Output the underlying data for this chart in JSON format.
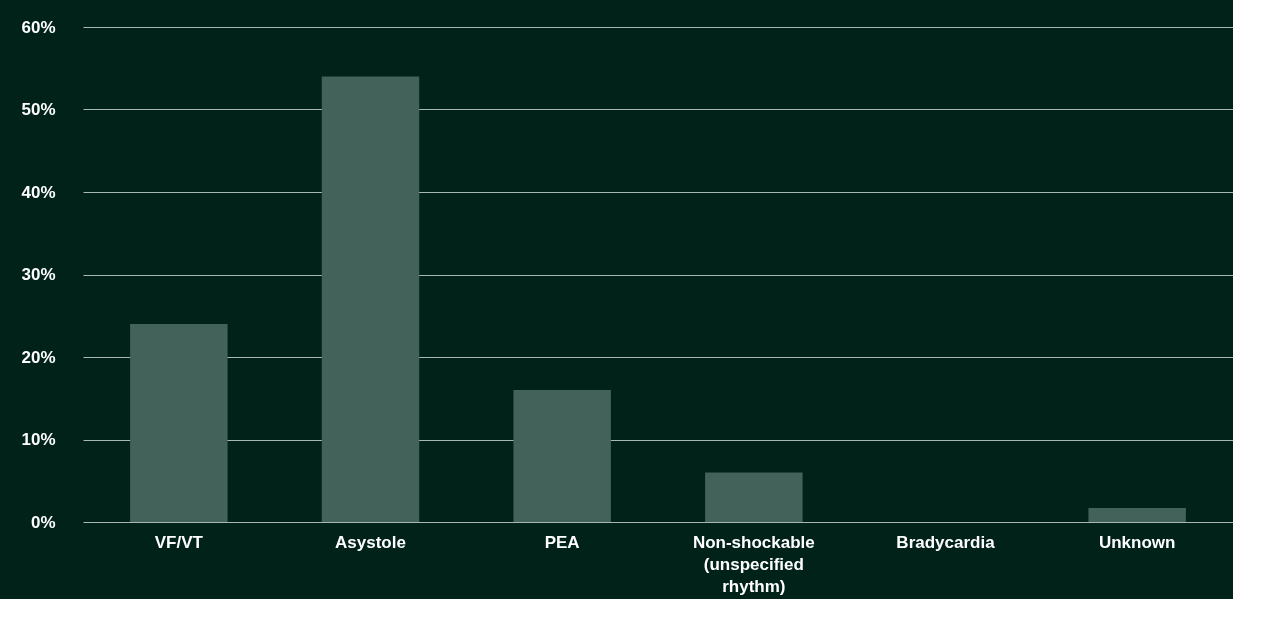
{
  "chart_data": {
    "type": "bar",
    "categories": [
      "VF/VT",
      "Asystole",
      "PEA",
      "Non-shockable (unspecified rhythm)",
      "Bradycardia",
      "Unknown"
    ],
    "values": [
      24,
      54,
      16,
      6,
      0,
      1.7
    ],
    "color": "#43635a",
    "ylim": [
      0,
      60
    ],
    "yticks": [
      {
        "value": 0,
        "label": "0%"
      },
      {
        "value": 10,
        "label": "10%"
      },
      {
        "value": 20,
        "label": "20%"
      },
      {
        "value": 30,
        "label": "30%"
      },
      {
        "value": 40,
        "label": "40%"
      },
      {
        "value": 50,
        "label": "50%"
      },
      {
        "value": 60,
        "label": "60%"
      }
    ],
    "grid": "y"
  }
}
